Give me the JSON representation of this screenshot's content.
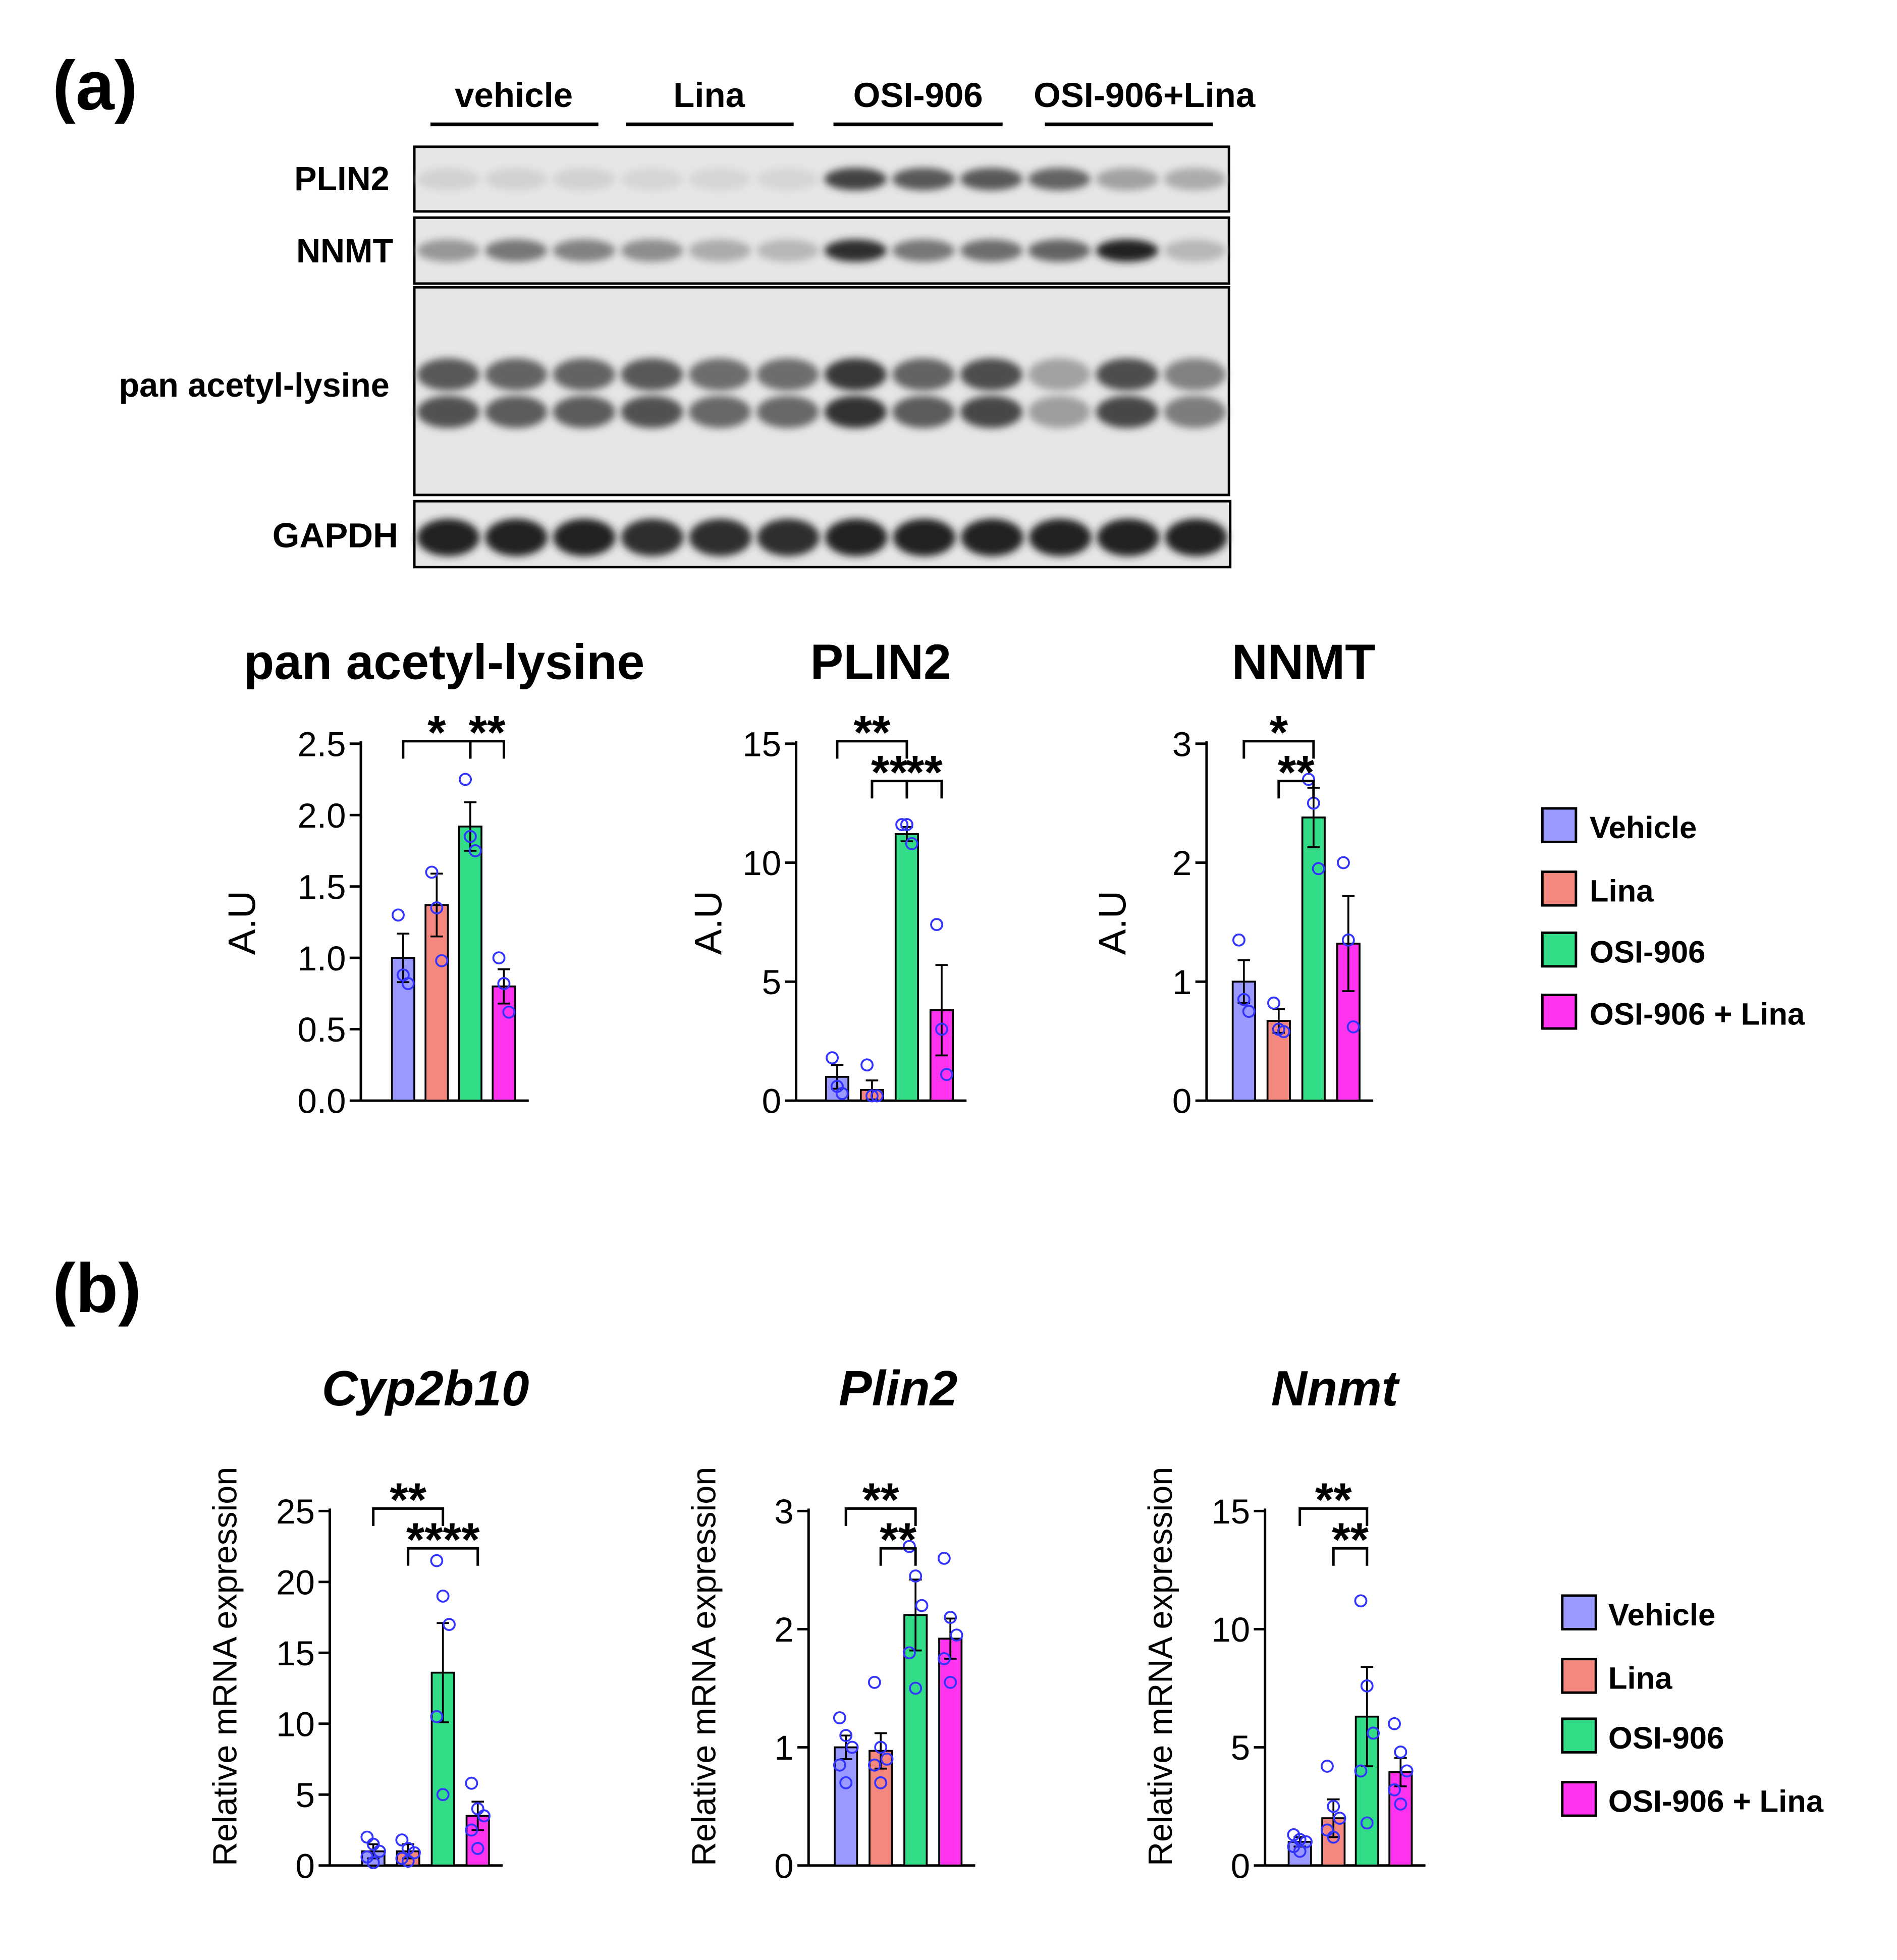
{
  "panel_a": {
    "label": "(a)",
    "lanes": [
      "vehicle",
      "Lina",
      "OSI-906",
      "OSI-906+Lina"
    ],
    "blots": [
      {
        "label": "PLIN2",
        "bands": [
          0.12,
          0.12,
          0.12,
          0.1,
          0.1,
          0.1,
          0.8,
          0.7,
          0.7,
          0.65,
          0.35,
          0.3
        ]
      },
      {
        "label": "NNMT",
        "bands": [
          0.4,
          0.55,
          0.5,
          0.45,
          0.3,
          0.25,
          0.9,
          0.55,
          0.6,
          0.65,
          0.95,
          0.25
        ]
      },
      {
        "label": "pan acetyl-lysine",
        "bands": [
          0.7,
          0.65,
          0.65,
          0.7,
          0.6,
          0.6,
          0.85,
          0.65,
          0.75,
          0.35,
          0.75,
          0.5
        ]
      },
      {
        "label": "GAPDH",
        "bands": [
          0.95,
          0.95,
          0.95,
          0.9,
          0.9,
          0.9,
          0.95,
          0.95,
          0.95,
          0.95,
          0.95,
          0.95
        ]
      }
    ],
    "legend": [
      "Vehicle",
      "Lina",
      "OSI-906",
      "OSI-906 + Lina"
    ]
  },
  "panel_b": {
    "label": "(b)",
    "legend": [
      "Vehicle",
      "Lina",
      "OSI-906",
      "OSI-906 + Lina"
    ]
  },
  "colors": {
    "vehicle": "#9999ff",
    "lina": "#f4877e",
    "osi": "#33dd88",
    "combo": "#ff33ee",
    "dots": "#3333ff"
  },
  "chart_data": [
    {
      "type": "bar",
      "title": "pan acetyl-lysine",
      "italic": false,
      "ylabel": "A.U",
      "categories": [
        "Vehicle",
        "Lina",
        "OSI-906",
        "OSI-906 + Lina"
      ],
      "values": [
        1.0,
        1.37,
        1.92,
        0.8
      ],
      "sem": [
        0.17,
        0.22,
        0.17,
        0.12
      ],
      "points": [
        [
          1.3,
          0.88,
          0.82
        ],
        [
          1.6,
          1.35,
          0.98
        ],
        [
          2.25,
          1.85,
          1.75
        ],
        [
          1.0,
          0.82,
          0.62
        ]
      ],
      "ylim": [
        0,
        2.5
      ],
      "yticks": [
        "0.0",
        "0.5",
        "1.0",
        "1.5",
        "2.0",
        "2.5"
      ],
      "sig": [
        {
          "from": 0,
          "to": 2,
          "text": "*",
          "level": 0
        },
        {
          "from": 2,
          "to": 3,
          "text": "**",
          "level": 0
        }
      ]
    },
    {
      "type": "bar",
      "title": "PLIN2",
      "italic": false,
      "ylabel": "A.U",
      "categories": [
        "Vehicle",
        "Lina",
        "OSI-906",
        "OSI-906 + Lina"
      ],
      "values": [
        1.0,
        0.45,
        11.2,
        3.8
      ],
      "sem": [
        0.5,
        0.4,
        0.3,
        1.9
      ],
      "points": [
        [
          1.8,
          0.6,
          0.3
        ],
        [
          1.5,
          0.2,
          0.2
        ],
        [
          11.6,
          11.6,
          10.8
        ],
        [
          7.4,
          3.0,
          1.1
        ]
      ],
      "ylim": [
        0,
        15
      ],
      "yticks": [
        "0",
        "5",
        "10",
        "15"
      ],
      "sig": [
        {
          "from": 0,
          "to": 2,
          "text": "**",
          "level": 0
        },
        {
          "from": 1,
          "to": 2,
          "text": "**",
          "level": 1
        },
        {
          "from": 2,
          "to": 3,
          "text": "**",
          "level": 1
        }
      ]
    },
    {
      "type": "bar",
      "title": "NNMT",
      "italic": false,
      "ylabel": "A.U",
      "categories": [
        "Vehicle",
        "Lina",
        "OSI-906",
        "OSI-906 + Lina"
      ],
      "values": [
        1.0,
        0.67,
        2.38,
        1.32
      ],
      "sem": [
        0.18,
        0.1,
        0.25,
        0.4
      ],
      "points": [
        [
          1.35,
          0.85,
          0.75
        ],
        [
          0.82,
          0.6,
          0.58
        ],
        [
          2.7,
          2.5,
          1.95
        ],
        [
          2.0,
          1.35,
          0.62
        ]
      ],
      "ylim": [
        0,
        3
      ],
      "yticks": [
        "0",
        "1",
        "2",
        "3"
      ],
      "sig": [
        {
          "from": 0,
          "to": 2,
          "text": "*",
          "level": 0
        },
        {
          "from": 1,
          "to": 2,
          "text": "**",
          "level": 1
        }
      ]
    },
    {
      "type": "bar",
      "title": "Cyp2b10",
      "italic": true,
      "ylabel": "Relative mRNA expression",
      "categories": [
        "Vehicle",
        "Lina",
        "OSI-906",
        "OSI-906 + Lina"
      ],
      "values": [
        1.0,
        1.0,
        13.6,
        3.5
      ],
      "sem": [
        0.5,
        0.5,
        3.5,
        1.0
      ],
      "points": [
        [
          2.0,
          1.5,
          1.0,
          0.6,
          0.2
        ],
        [
          1.8,
          1.2,
          0.9,
          0.5,
          0.3
        ],
        [
          21.5,
          19.0,
          17.0,
          10.5,
          5.0
        ],
        [
          5.8,
          4.0,
          3.5,
          2.5,
          1.2
        ]
      ],
      "ylim": [
        0,
        25
      ],
      "yticks": [
        "0",
        "5",
        "10",
        "15",
        "20",
        "25"
      ],
      "sig": [
        {
          "from": 0,
          "to": 2,
          "text": "**",
          "level": 0
        },
        {
          "from": 1,
          "to": 3,
          "text": "****",
          "level": 1
        }
      ]
    },
    {
      "type": "bar",
      "title": "Plin2",
      "italic": true,
      "ylabel": "Relative mRNA expression",
      "categories": [
        "Vehicle",
        "Lina",
        "OSI-906",
        "OSI-906 + Lina"
      ],
      "values": [
        1.0,
        0.97,
        2.12,
        1.92
      ],
      "sem": [
        0.1,
        0.15,
        0.3,
        0.17
      ],
      "points": [
        [
          1.25,
          1.1,
          1.0,
          0.85,
          0.7
        ],
        [
          1.55,
          1.0,
          0.9,
          0.85,
          0.7
        ],
        [
          2.7,
          2.45,
          2.2,
          1.8,
          1.5
        ],
        [
          2.6,
          2.1,
          1.95,
          1.75,
          1.55
        ]
      ],
      "ylim": [
        0,
        3
      ],
      "yticks": [
        "0",
        "1",
        "2",
        "3"
      ],
      "sig": [
        {
          "from": 0,
          "to": 2,
          "text": "**",
          "level": 0
        },
        {
          "from": 1,
          "to": 2,
          "text": "**",
          "level": 1
        }
      ]
    },
    {
      "type": "bar",
      "title": "Nnmt",
      "italic": true,
      "ylabel": "Relative mRNA expression",
      "categories": [
        "Vehicle",
        "Lina",
        "OSI-906",
        "OSI-906 + Lina"
      ],
      "values": [
        1.0,
        2.0,
        6.3,
        3.95
      ],
      "sem": [
        0.2,
        0.8,
        2.1,
        0.6
      ],
      "points": [
        [
          1.3,
          1.1,
          1.0,
          0.8,
          0.6
        ],
        [
          4.2,
          2.5,
          2.0,
          1.5,
          1.2
        ],
        [
          11.2,
          7.6,
          5.6,
          4.0,
          1.8
        ],
        [
          6.0,
          4.8,
          4.0,
          3.2,
          2.6
        ]
      ],
      "ylim": [
        0,
        15
      ],
      "yticks": [
        "0",
        "5",
        "10",
        "15"
      ],
      "sig": [
        {
          "from": 0,
          "to": 2,
          "text": "**",
          "level": 0
        },
        {
          "from": 1,
          "to": 2,
          "text": "**",
          "level": 1
        }
      ]
    }
  ]
}
